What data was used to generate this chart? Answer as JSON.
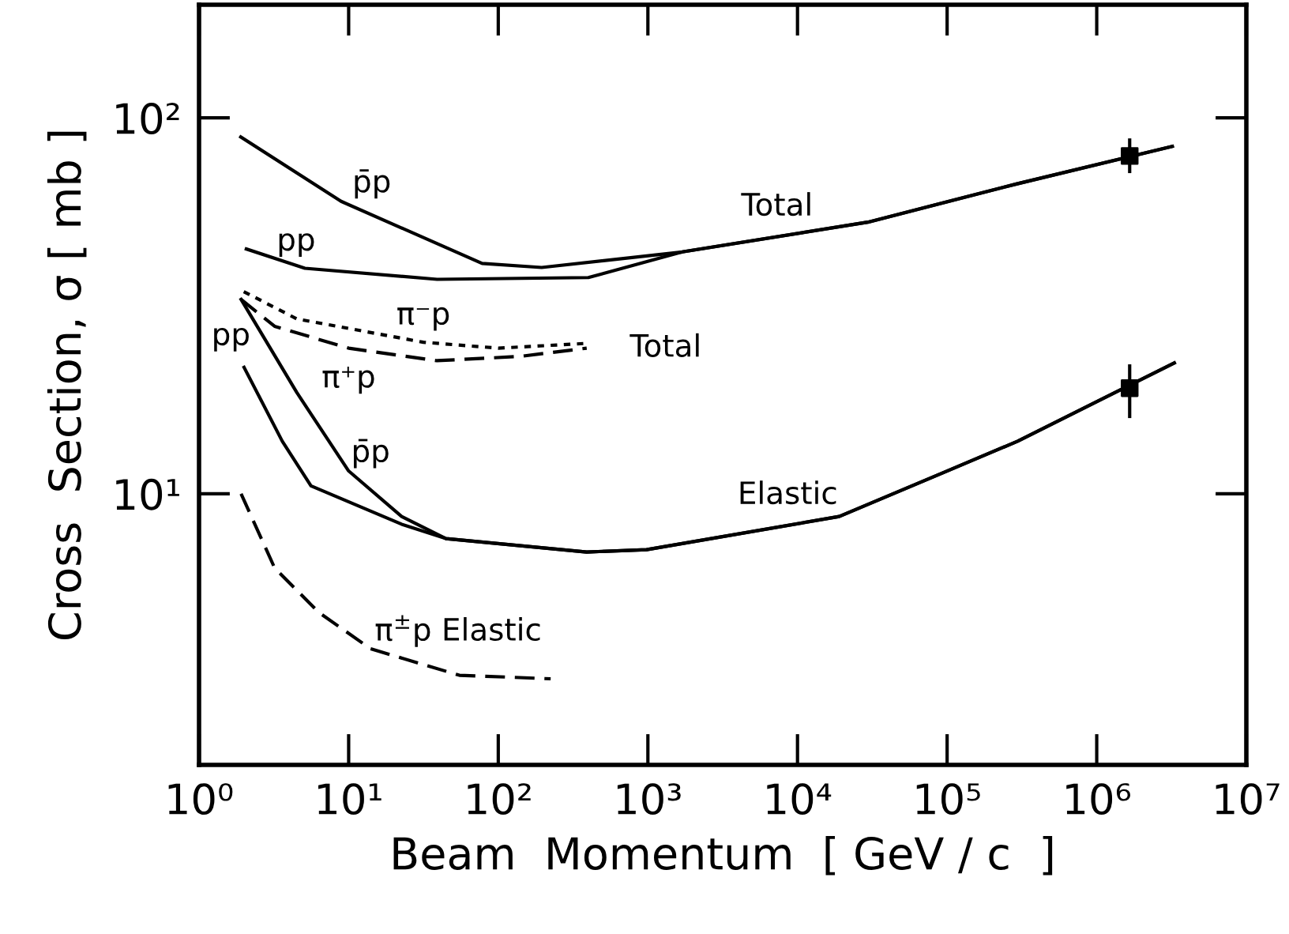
{
  "chart_data": {
    "type": "line",
    "xlabel": "Beam  Momentum  [ GeV / c  ]",
    "ylabel": "Cross  Section, σ [ mb ]",
    "log": "xy",
    "grid": false,
    "legend": false,
    "xlim": [
      1,
      10000000
    ],
    "ylim": [
      1.9,
      200
    ],
    "xticks": [
      {
        "value": 1,
        "label": "10⁰"
      },
      {
        "value": 10,
        "label": "10¹"
      },
      {
        "value": 100,
        "label": "10²"
      },
      {
        "value": 1000,
        "label": "10³"
      },
      {
        "value": 10000,
        "label": "10⁴"
      },
      {
        "value": 100000,
        "label": "10⁵"
      },
      {
        "value": 1000000,
        "label": "10⁶"
      },
      {
        "value": 10000000,
        "label": "10⁷"
      }
    ],
    "yticks": [
      {
        "value": 10,
        "label": "10¹"
      },
      {
        "value": 100,
        "label": "10²"
      }
    ],
    "series": [
      {
        "name": "p̄p",
        "color": "#000000",
        "line_style": "solid",
        "x": [
          1.9,
          8.9,
          78,
          195,
          1700,
          29500,
          290000,
          3200000
        ],
        "values": [
          89,
          60,
          41,
          40,
          44,
          52.8,
          66.7,
          84
        ]
      },
      {
        "name": "pp",
        "color": "#000000",
        "line_style": "solid",
        "x": [
          2.07,
          5.1,
          39,
          400,
          1700,
          29500,
          290000,
          3200000
        ],
        "values": [
          44.8,
          39.8,
          37.2,
          37.6,
          44,
          52.8,
          66.7,
          84
        ]
      },
      {
        "name": "π⁻p",
        "color": "#000000",
        "line_style": "dotted",
        "x": [
          1.99,
          4.5,
          31.6,
          100,
          370
        ],
        "values": [
          34.5,
          29.2,
          25.3,
          24.4,
          25.1
        ]
      },
      {
        "name": "π⁺p",
        "color": "#000000",
        "line_style": "dashed",
        "x": [
          1.91,
          3.2,
          10,
          39,
          140,
          390
        ],
        "values": [
          32.9,
          27.9,
          24.4,
          22.6,
          23.2,
          24.4
        ]
      },
      {
        "name": "p̄p",
        "color": "#000000",
        "line_style": "solid",
        "x": [
          1.91,
          4.5,
          10,
          22.6,
          44.7,
          390,
          980,
          19000,
          95000,
          296000,
          3300000
        ],
        "values": [
          32.9,
          18.6,
          11.5,
          8.7,
          7.6,
          7.0,
          7.1,
          8.7,
          11.4,
          13.8,
          22.3
        ]
      },
      {
        "name": "pp",
        "color": "#000000",
        "line_style": "solid",
        "x": [
          2.0,
          3.6,
          5.6,
          22.6,
          44.7,
          390,
          980,
          19000,
          95000,
          296000,
          3300000
        ],
        "values": [
          21.7,
          13.8,
          10.5,
          8.3,
          7.6,
          7.0,
          7.1,
          8.7,
          11.4,
          13.8,
          22.3
        ]
      },
      {
        "name": "π$^{±}$p Elastic",
        "color": "#000000",
        "line_style": "dashed",
        "x": [
          1.91,
          3.2,
          6.3,
          14,
          55,
          224
        ],
        "values": [
          10,
          6.35,
          4.84,
          3.87,
          3.29,
          3.22
        ]
      },
      {
        "type": "scatter",
        "color": "#000000",
        "marker": "square",
        "x": [
          1660000
        ],
        "values": [
          79.2
        ],
        "errors": [
          [
            71.3,
            88.2
          ]
        ]
      },
      {
        "type": "scatter",
        "color": "#000000",
        "marker": "square",
        "x": [
          1660000
        ],
        "values": [
          19.1
        ],
        "errors": [
          [
            15.9,
            22.1
          ]
        ]
      }
    ],
    "annotations": [
      {
        "text": "Total",
        "x": 7300,
        "y": 48
      },
      {
        "text": "Total",
        "x": 390,
        "y": 24.4
      },
      {
        "text": "Elastic",
        "x": 8600,
        "y": 8.2
      }
    ]
  }
}
